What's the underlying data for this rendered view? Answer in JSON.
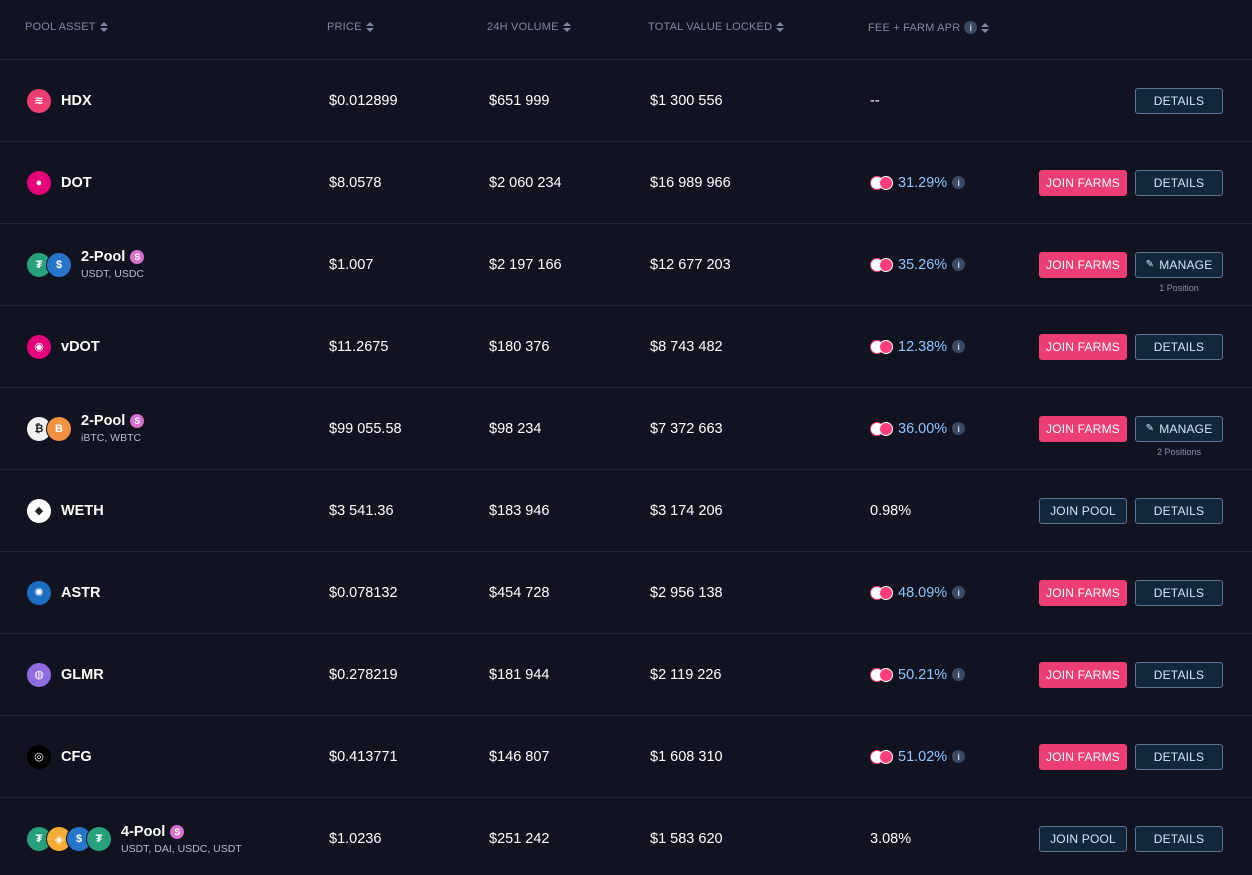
{
  "header": {
    "pool_asset": "POOL ASSET",
    "price": "PRICE",
    "volume": "24H VOLUME",
    "tvl": "TOTAL VALUE LOCKED",
    "apr": "FEE + FARM APR"
  },
  "buttons": {
    "details": "DETAILS",
    "join_farms": "JOIN FARMS",
    "join_pool": "JOIN POOL",
    "manage": "MANAGE"
  },
  "rows": [
    {
      "name": "HDX",
      "sub": "",
      "price": "$0.012899",
      "volume": "$651 999",
      "tvl": "$1 300 556",
      "apr": "--",
      "apr_farm": false,
      "actions": [
        "details"
      ],
      "manage_note": ""
    },
    {
      "name": "DOT",
      "sub": "",
      "price": "$8.0578",
      "volume": "$2 060 234",
      "tvl": "$16 989 966",
      "apr": "31.29%",
      "apr_farm": true,
      "actions": [
        "join_farms",
        "details"
      ],
      "manage_note": ""
    },
    {
      "name": "2-Pool",
      "sub": "USDT, USDC",
      "price": "$1.007",
      "volume": "$2 197 166",
      "tvl": "$12 677 203",
      "apr": "35.26%",
      "apr_farm": true,
      "actions": [
        "join_farms",
        "manage"
      ],
      "manage_note": "1 Position"
    },
    {
      "name": "vDOT",
      "sub": "",
      "price": "$11.2675",
      "volume": "$180 376",
      "tvl": "$8 743 482",
      "apr": "12.38%",
      "apr_farm": true,
      "actions": [
        "join_farms",
        "details"
      ],
      "manage_note": ""
    },
    {
      "name": "2-Pool",
      "sub": "iBTC, WBTC",
      "price": "$99 055.58",
      "volume": "$98 234",
      "tvl": "$7 372 663",
      "apr": "36.00%",
      "apr_farm": true,
      "actions": [
        "join_farms",
        "manage"
      ],
      "manage_note": "2 Positions"
    },
    {
      "name": "WETH",
      "sub": "",
      "price": "$3 541.36",
      "volume": "$183 946",
      "tvl": "$3 174 206",
      "apr": "0.98%",
      "apr_farm": false,
      "actions": [
        "join_pool",
        "details"
      ],
      "manage_note": ""
    },
    {
      "name": "ASTR",
      "sub": "",
      "price": "$0.078132",
      "volume": "$454 728",
      "tvl": "$2 956 138",
      "apr": "48.09%",
      "apr_farm": true,
      "actions": [
        "join_farms",
        "details"
      ],
      "manage_note": ""
    },
    {
      "name": "GLMR",
      "sub": "",
      "price": "$0.278219",
      "volume": "$181 944",
      "tvl": "$2 119 226",
      "apr": "50.21%",
      "apr_farm": true,
      "actions": [
        "join_farms",
        "details"
      ],
      "manage_note": ""
    },
    {
      "name": "CFG",
      "sub": "",
      "price": "$0.413771",
      "volume": "$146 807",
      "tvl": "$1 608 310",
      "apr": "51.02%",
      "apr_farm": true,
      "actions": [
        "join_farms",
        "details"
      ],
      "manage_note": ""
    },
    {
      "name": "4-Pool",
      "sub": "USDT, DAI, USDC, USDT",
      "price": "$1.0236",
      "volume": "$251 242",
      "tvl": "$1 583 620",
      "apr": "3.08%",
      "apr_farm": false,
      "actions": [
        "join_pool",
        "details"
      ],
      "manage_note": ""
    }
  ],
  "token_icons": [
    [
      {
        "icon": "hdx-icon",
        "color": "#ec3e72",
        "glyph": "≋"
      }
    ],
    [
      {
        "icon": "dot-icon",
        "color": "#e6007a",
        "glyph": "●"
      }
    ],
    [
      {
        "icon": "usdt-icon",
        "color": "#26a17b",
        "glyph": "₮"
      },
      {
        "icon": "usdc-icon",
        "color": "#2775ca",
        "glyph": "$"
      }
    ],
    [
      {
        "icon": "vdot-icon",
        "color": "#e6007a",
        "glyph": "◉"
      }
    ],
    [
      {
        "icon": "ibtc-icon",
        "color": "#f2f2f2",
        "glyph": "₿"
      },
      {
        "icon": "wbtc-icon",
        "color": "#f09242",
        "glyph": "B"
      }
    ],
    [
      {
        "icon": "weth-icon",
        "color": "#ffffff",
        "glyph": "◆"
      }
    ],
    [
      {
        "icon": "astr-icon",
        "color": "#1b6dc1",
        "glyph": "✺"
      }
    ],
    [
      {
        "icon": "glmr-icon",
        "color": "#8e6de0",
        "glyph": "◍"
      }
    ],
    [
      {
        "icon": "cfg-icon",
        "color": "#000000",
        "glyph": "◎"
      }
    ],
    [
      {
        "icon": "usdt-icon",
        "color": "#26a17b",
        "glyph": "₮"
      },
      {
        "icon": "dai-icon",
        "color": "#f5ac37",
        "glyph": "◈"
      },
      {
        "icon": "usdc-icon",
        "color": "#2775ca",
        "glyph": "$"
      },
      {
        "icon": "usdt-icon",
        "color": "#26a17b",
        "glyph": "₮"
      }
    ]
  ]
}
